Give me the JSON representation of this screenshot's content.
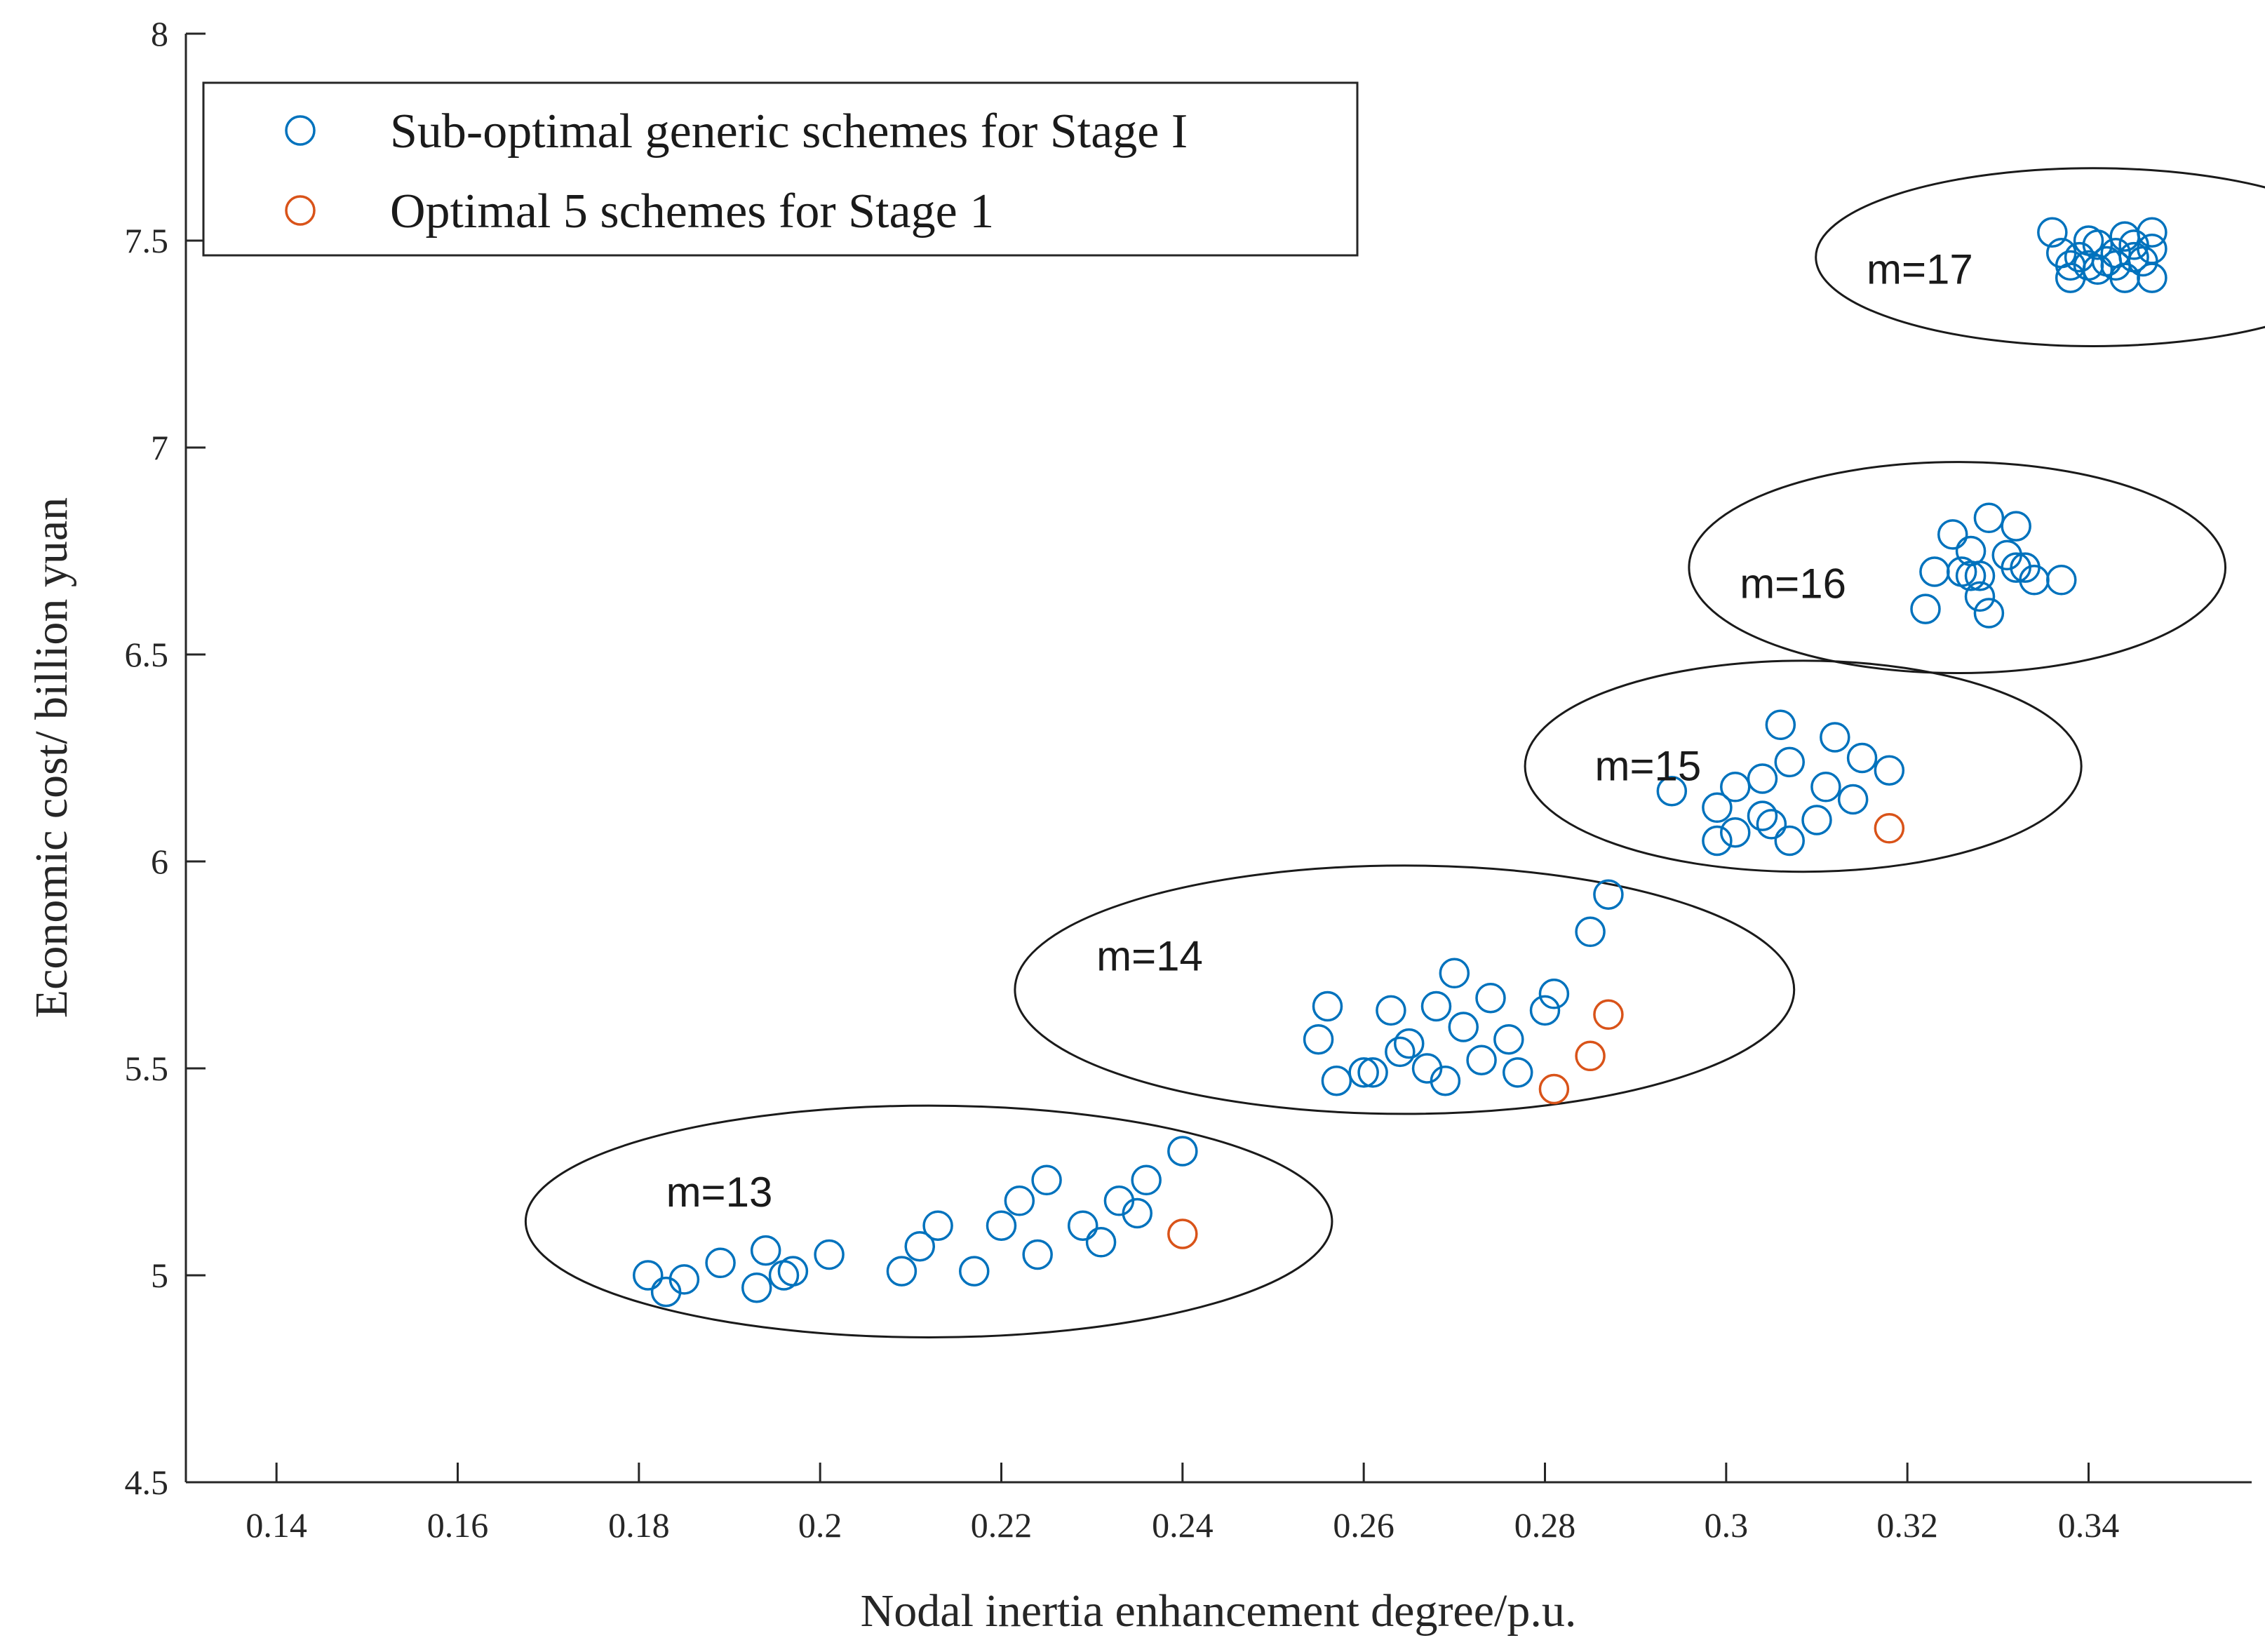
{
  "chart_data": {
    "type": "scatter",
    "xlabel": "Nodal inertia enhancement degree/p.u.",
    "ylabel": "Economic cost/ billion yuan",
    "xlim": [
      0.13,
      0.358
    ],
    "ylim": [
      4.5,
      8
    ],
    "xticks": [
      0.14,
      0.16,
      0.18,
      0.2,
      0.22,
      0.24,
      0.26,
      0.28,
      0.3,
      0.32,
      0.34
    ],
    "xtick_labels": [
      "0.14",
      "0.16",
      "0.18",
      "0.2",
      "0.22",
      "0.24",
      "0.26",
      "0.28",
      "0.3",
      "0.32",
      "0.34"
    ],
    "yticks": [
      4.5,
      5,
      5.5,
      6,
      6.5,
      7,
      7.5,
      8
    ],
    "ytick_labels": [
      "4.5",
      "5",
      "5.5",
      "6",
      "6.5",
      "7",
      "7.5",
      "8"
    ],
    "legend": {
      "position": "top-left",
      "entries": [
        "Sub-optimal generic schemes for Stage I",
        "Optimal 5 schemes for Stage 1"
      ]
    },
    "series": [
      {
        "name": "Sub-optimal generic schemes for Stage I",
        "color": "#0072BD",
        "points": [
          [
            0.181,
            5.0
          ],
          [
            0.183,
            4.96
          ],
          [
            0.185,
            4.99
          ],
          [
            0.189,
            5.03
          ],
          [
            0.193,
            4.97
          ],
          [
            0.194,
            5.06
          ],
          [
            0.196,
            5.0
          ],
          [
            0.197,
            5.01
          ],
          [
            0.201,
            5.05
          ],
          [
            0.209,
            5.01
          ],
          [
            0.211,
            5.07
          ],
          [
            0.213,
            5.12
          ],
          [
            0.217,
            5.01
          ],
          [
            0.22,
            5.12
          ],
          [
            0.222,
            5.18
          ],
          [
            0.224,
            5.05
          ],
          [
            0.225,
            5.23
          ],
          [
            0.229,
            5.12
          ],
          [
            0.231,
            5.08
          ],
          [
            0.233,
            5.18
          ],
          [
            0.235,
            5.15
          ],
          [
            0.236,
            5.23
          ],
          [
            0.24,
            5.3
          ],
          [
            0.255,
            5.57
          ],
          [
            0.256,
            5.65
          ],
          [
            0.257,
            5.47
          ],
          [
            0.26,
            5.49
          ],
          [
            0.261,
            5.49
          ],
          [
            0.263,
            5.64
          ],
          [
            0.264,
            5.54
          ],
          [
            0.265,
            5.56
          ],
          [
            0.267,
            5.5
          ],
          [
            0.268,
            5.65
          ],
          [
            0.269,
            5.47
          ],
          [
            0.27,
            5.73
          ],
          [
            0.271,
            5.6
          ],
          [
            0.273,
            5.52
          ],
          [
            0.274,
            5.67
          ],
          [
            0.276,
            5.57
          ],
          [
            0.277,
            5.49
          ],
          [
            0.28,
            5.64
          ],
          [
            0.281,
            5.68
          ],
          [
            0.285,
            5.83
          ],
          [
            0.287,
            5.92
          ],
          [
            0.294,
            6.17
          ],
          [
            0.299,
            6.05
          ],
          [
            0.299,
            6.13
          ],
          [
            0.301,
            6.18
          ],
          [
            0.301,
            6.07
          ],
          [
            0.304,
            6.11
          ],
          [
            0.304,
            6.2
          ],
          [
            0.305,
            6.09
          ],
          [
            0.306,
            6.33
          ],
          [
            0.307,
            6.05
          ],
          [
            0.307,
            6.24
          ],
          [
            0.31,
            6.1
          ],
          [
            0.311,
            6.18
          ],
          [
            0.312,
            6.3
          ],
          [
            0.314,
            6.15
          ],
          [
            0.315,
            6.25
          ],
          [
            0.318,
            6.22
          ],
          [
            0.322,
            6.61
          ],
          [
            0.323,
            6.7
          ],
          [
            0.325,
            6.79
          ],
          [
            0.326,
            6.7
          ],
          [
            0.327,
            6.69
          ],
          [
            0.327,
            6.75
          ],
          [
            0.328,
            6.64
          ],
          [
            0.328,
            6.69
          ],
          [
            0.329,
            6.83
          ],
          [
            0.329,
            6.6
          ],
          [
            0.331,
            6.74
          ],
          [
            0.332,
            6.71
          ],
          [
            0.332,
            6.81
          ],
          [
            0.333,
            6.71
          ],
          [
            0.334,
            6.68
          ],
          [
            0.337,
            6.68
          ],
          [
            0.336,
            7.52
          ],
          [
            0.337,
            7.47
          ],
          [
            0.338,
            7.41
          ],
          [
            0.338,
            7.44
          ],
          [
            0.339,
            7.46
          ],
          [
            0.34,
            7.5
          ],
          [
            0.34,
            7.44
          ],
          [
            0.341,
            7.49
          ],
          [
            0.341,
            7.43
          ],
          [
            0.342,
            7.45
          ],
          [
            0.343,
            7.47
          ],
          [
            0.343,
            7.44
          ],
          [
            0.344,
            7.51
          ],
          [
            0.344,
            7.41
          ],
          [
            0.345,
            7.46
          ],
          [
            0.345,
            7.49
          ],
          [
            0.346,
            7.45
          ],
          [
            0.347,
            7.41
          ],
          [
            0.347,
            7.48
          ],
          [
            0.347,
            7.52
          ]
        ]
      },
      {
        "name": "Optimal 5 schemes for Stage 1",
        "color": "#D95319",
        "points": [
          [
            0.24,
            5.1
          ],
          [
            0.281,
            5.45
          ],
          [
            0.285,
            5.53
          ],
          [
            0.287,
            5.63
          ],
          [
            0.318,
            6.08
          ]
        ]
      }
    ],
    "groups": [
      {
        "label": "m=13",
        "cx": 0.212,
        "cy": 5.13,
        "rx": 0.0445,
        "ry": 0.28,
        "label_x": 0.183,
        "label_y": 5.2
      },
      {
        "label": "m=14",
        "cx": 0.2645,
        "cy": 5.69,
        "rx": 0.043,
        "ry": 0.3,
        "label_x": 0.2305,
        "label_y": 5.77
      },
      {
        "label": "m=15",
        "cx": 0.3085,
        "cy": 6.23,
        "rx": 0.0307,
        "ry": 0.255,
        "label_x": 0.2855,
        "label_y": 6.23
      },
      {
        "label": "m=16",
        "cx": 0.3255,
        "cy": 6.71,
        "rx": 0.0296,
        "ry": 0.255,
        "label_x": 0.3015,
        "label_y": 6.67
      },
      {
        "label": "m=17",
        "cx": 0.3405,
        "cy": 7.46,
        "rx": 0.0306,
        "ry": 0.215,
        "label_x": 0.3155,
        "label_y": 7.43
      }
    ]
  }
}
